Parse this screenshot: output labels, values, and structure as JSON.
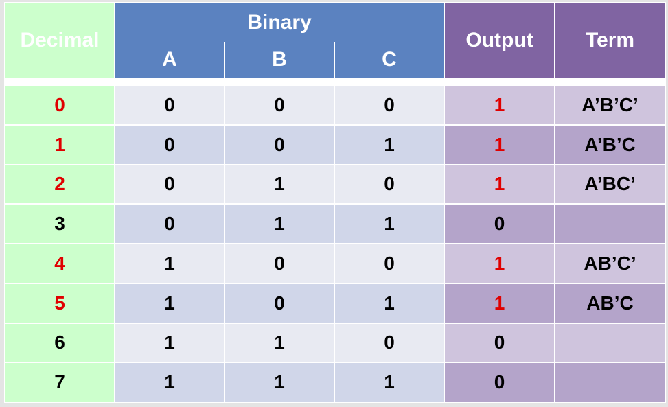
{
  "headers": {
    "decimal": "Decimal",
    "binary": "Binary",
    "a": "A",
    "b": "B",
    "c": "C",
    "output": "Output",
    "term": "Term"
  },
  "rows": [
    {
      "decimal": "0",
      "a": "0",
      "b": "0",
      "c": "0",
      "output": "1",
      "term": "A’B’C’",
      "highlight": true
    },
    {
      "decimal": "1",
      "a": "0",
      "b": "0",
      "c": "1",
      "output": "1",
      "term": "A’B’C",
      "highlight": true
    },
    {
      "decimal": "2",
      "a": "0",
      "b": "1",
      "c": "0",
      "output": "1",
      "term": "A’BC’",
      "highlight": true
    },
    {
      "decimal": "3",
      "a": "0",
      "b": "1",
      "c": "1",
      "output": "0",
      "term": "",
      "highlight": false
    },
    {
      "decimal": "4",
      "a": "1",
      "b": "0",
      "c": "0",
      "output": "1",
      "term": "AB’C’",
      "highlight": true
    },
    {
      "decimal": "5",
      "a": "1",
      "b": "0",
      "c": "1",
      "output": "1",
      "term": "AB’C",
      "highlight": true
    },
    {
      "decimal": "6",
      "a": "1",
      "b": "1",
      "c": "0",
      "output": "0",
      "term": "",
      "highlight": false
    },
    {
      "decimal": "7",
      "a": "1",
      "b": "1",
      "c": "1",
      "output": "0",
      "term": "",
      "highlight": false
    }
  ],
  "colors": {
    "decimal_bg": "#ccffcc",
    "binary_header_bg": "#5b82c0",
    "output_header_bg": "#8064a2",
    "highlight_text": "#e00000"
  }
}
